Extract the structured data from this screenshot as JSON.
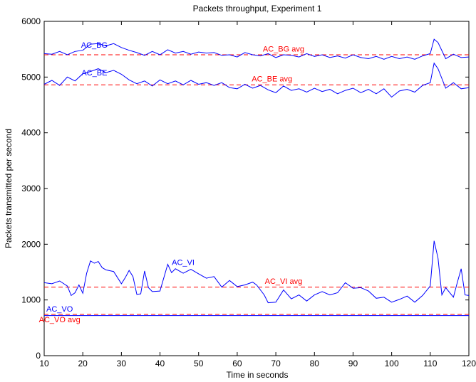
{
  "chart_data": {
    "type": "line",
    "title": "Packets throughput, Experiment 1",
    "xlabel": "Time in seconds",
    "ylabel": "Packets transmitted per second",
    "xlim": [
      10,
      120
    ],
    "ylim": [
      0,
      6000
    ],
    "x_ticks": [
      10,
      20,
      30,
      40,
      50,
      60,
      70,
      80,
      90,
      100,
      110,
      120
    ],
    "y_ticks": [
      0,
      1000,
      2000,
      3000,
      4000,
      5000,
      6000
    ],
    "grid": false,
    "legend": "none",
    "series": [
      {
        "name": "AC_BG",
        "color": "#0000ff",
        "label_at": [
          23,
          5530
        ],
        "points": [
          [
            10,
            5420
          ],
          [
            12,
            5410
          ],
          [
            14,
            5460
          ],
          [
            16,
            5400
          ],
          [
            18,
            5460
          ],
          [
            20,
            5480
          ],
          [
            22,
            5590
          ],
          [
            24,
            5600
          ],
          [
            26,
            5560
          ],
          [
            28,
            5600
          ],
          [
            30,
            5530
          ],
          [
            32,
            5480
          ],
          [
            34,
            5440
          ],
          [
            36,
            5390
          ],
          [
            38,
            5460
          ],
          [
            40,
            5400
          ],
          [
            42,
            5490
          ],
          [
            44,
            5430
          ],
          [
            46,
            5460
          ],
          [
            48,
            5410
          ],
          [
            50,
            5450
          ],
          [
            52,
            5430
          ],
          [
            54,
            5440
          ],
          [
            56,
            5390
          ],
          [
            58,
            5400
          ],
          [
            60,
            5360
          ],
          [
            62,
            5440
          ],
          [
            64,
            5400
          ],
          [
            66,
            5380
          ],
          [
            68,
            5420
          ],
          [
            70,
            5350
          ],
          [
            72,
            5400
          ],
          [
            74,
            5390
          ],
          [
            76,
            5360
          ],
          [
            78,
            5420
          ],
          [
            80,
            5370
          ],
          [
            82,
            5400
          ],
          [
            84,
            5350
          ],
          [
            86,
            5380
          ],
          [
            88,
            5340
          ],
          [
            90,
            5400
          ],
          [
            92,
            5350
          ],
          [
            94,
            5330
          ],
          [
            96,
            5370
          ],
          [
            98,
            5320
          ],
          [
            100,
            5370
          ],
          [
            102,
            5330
          ],
          [
            104,
            5360
          ],
          [
            106,
            5320
          ],
          [
            108,
            5380
          ],
          [
            110,
            5420
          ],
          [
            111,
            5680
          ],
          [
            112,
            5620
          ],
          [
            114,
            5330
          ],
          [
            116,
            5410
          ],
          [
            118,
            5350
          ],
          [
            120,
            5360
          ]
        ]
      },
      {
        "name": "AC_BE",
        "color": "#0000ff",
        "label_at": [
          23,
          5030
        ],
        "points": [
          [
            10,
            4870
          ],
          [
            12,
            4940
          ],
          [
            14,
            4850
          ],
          [
            16,
            5000
          ],
          [
            18,
            4930
          ],
          [
            20,
            5060
          ],
          [
            22,
            5100
          ],
          [
            24,
            5150
          ],
          [
            26,
            5080
          ],
          [
            28,
            5120
          ],
          [
            30,
            5050
          ],
          [
            32,
            4950
          ],
          [
            34,
            4880
          ],
          [
            36,
            4930
          ],
          [
            38,
            4840
          ],
          [
            40,
            4950
          ],
          [
            42,
            4880
          ],
          [
            44,
            4930
          ],
          [
            46,
            4860
          ],
          [
            48,
            4940
          ],
          [
            50,
            4870
          ],
          [
            52,
            4900
          ],
          [
            54,
            4850
          ],
          [
            56,
            4900
          ],
          [
            58,
            4810
          ],
          [
            60,
            4790
          ],
          [
            62,
            4870
          ],
          [
            64,
            4800
          ],
          [
            66,
            4850
          ],
          [
            68,
            4770
          ],
          [
            70,
            4720
          ],
          [
            72,
            4840
          ],
          [
            74,
            4760
          ],
          [
            76,
            4790
          ],
          [
            78,
            4730
          ],
          [
            80,
            4800
          ],
          [
            82,
            4740
          ],
          [
            84,
            4780
          ],
          [
            86,
            4700
          ],
          [
            88,
            4760
          ],
          [
            90,
            4800
          ],
          [
            92,
            4720
          ],
          [
            94,
            4780
          ],
          [
            96,
            4700
          ],
          [
            98,
            4790
          ],
          [
            100,
            4640
          ],
          [
            102,
            4750
          ],
          [
            104,
            4780
          ],
          [
            106,
            4730
          ],
          [
            108,
            4850
          ],
          [
            110,
            4900
          ],
          [
            111,
            5250
          ],
          [
            112,
            5150
          ],
          [
            114,
            4800
          ],
          [
            116,
            4900
          ],
          [
            118,
            4790
          ],
          [
            120,
            4810
          ]
        ]
      },
      {
        "name": "AC_VI",
        "color": "#0000ff",
        "label_at": [
          46,
          1630
        ],
        "points": [
          [
            10,
            1310
          ],
          [
            12,
            1290
          ],
          [
            14,
            1340
          ],
          [
            16,
            1250
          ],
          [
            17,
            1080
          ],
          [
            18,
            1130
          ],
          [
            19,
            1270
          ],
          [
            20,
            1120
          ],
          [
            21,
            1480
          ],
          [
            22,
            1700
          ],
          [
            23,
            1660
          ],
          [
            24,
            1690
          ],
          [
            25,
            1580
          ],
          [
            26,
            1540
          ],
          [
            28,
            1510
          ],
          [
            30,
            1290
          ],
          [
            31,
            1400
          ],
          [
            32,
            1530
          ],
          [
            33,
            1420
          ],
          [
            34,
            1100
          ],
          [
            35,
            1110
          ],
          [
            36,
            1520
          ],
          [
            37,
            1220
          ],
          [
            38,
            1150
          ],
          [
            40,
            1160
          ],
          [
            42,
            1640
          ],
          [
            43,
            1490
          ],
          [
            44,
            1560
          ],
          [
            46,
            1480
          ],
          [
            48,
            1550
          ],
          [
            50,
            1470
          ],
          [
            52,
            1390
          ],
          [
            54,
            1420
          ],
          [
            56,
            1230
          ],
          [
            58,
            1350
          ],
          [
            60,
            1240
          ],
          [
            62,
            1270
          ],
          [
            64,
            1320
          ],
          [
            65,
            1270
          ],
          [
            67,
            1090
          ],
          [
            68,
            950
          ],
          [
            70,
            960
          ],
          [
            72,
            1180
          ],
          [
            74,
            1020
          ],
          [
            76,
            1090
          ],
          [
            78,
            980
          ],
          [
            80,
            1090
          ],
          [
            82,
            1150
          ],
          [
            84,
            1090
          ],
          [
            86,
            1130
          ],
          [
            88,
            1310
          ],
          [
            90,
            1210
          ],
          [
            92,
            1220
          ],
          [
            94,
            1160
          ],
          [
            96,
            1030
          ],
          [
            98,
            1050
          ],
          [
            100,
            960
          ],
          [
            102,
            1010
          ],
          [
            104,
            1070
          ],
          [
            106,
            960
          ],
          [
            108,
            1080
          ],
          [
            110,
            1250
          ],
          [
            111,
            2060
          ],
          [
            112,
            1750
          ],
          [
            113,
            1090
          ],
          [
            114,
            1220
          ],
          [
            116,
            1050
          ],
          [
            117,
            1310
          ],
          [
            118,
            1560
          ],
          [
            119,
            1090
          ],
          [
            120,
            1080
          ]
        ]
      },
      {
        "name": "AC_VO",
        "color": "#0000ff",
        "label_at": [
          14,
          790
        ],
        "points": [
          [
            10,
            720
          ],
          [
            120,
            720
          ]
        ]
      }
    ],
    "averages": [
      {
        "name": "AC_BG avg",
        "value": 5400,
        "color": "#ff0000",
        "label_at": [
          72,
          5460
        ]
      },
      {
        "name": "AC_BE avg",
        "value": 4860,
        "color": "#ff0000",
        "label_at": [
          69,
          4920
        ]
      },
      {
        "name": "AC_VI avg",
        "value": 1230,
        "color": "#ff0000",
        "label_at": [
          72,
          1290
        ]
      },
      {
        "name": "AC_VO avg",
        "value": 740,
        "color": "#ff0000",
        "label_at": [
          14,
          600
        ]
      }
    ]
  }
}
